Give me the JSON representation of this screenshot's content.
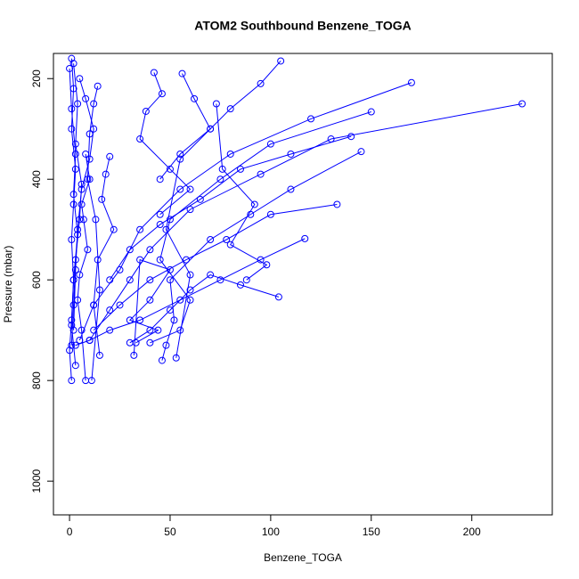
{
  "chart_data": {
    "type": "line",
    "title": "ATOM2 Southbound Benzene_TOGA",
    "x_label": "Benzene_TOGA",
    "y_label": "Pressure (mbar)",
    "color": "#0000ff",
    "xlim": [
      -8,
      240
    ],
    "xticks": [
      0,
      50,
      100,
      150,
      200
    ],
    "ylim": [
      1067,
      150
    ],
    "yticks": [
      200,
      400,
      600,
      800,
      1000
    ],
    "profiles": [
      {
        "x": [
          1,
          2,
          1,
          3,
          2,
          1,
          2,
          1,
          0,
          1
        ],
        "y": [
          160,
          220,
          300,
          380,
          450,
          520,
          600,
          680,
          740,
          800
        ]
      },
      {
        "x": [
          2,
          4,
          3,
          6,
          5,
          3,
          2,
          1
        ],
        "y": [
          170,
          250,
          330,
          410,
          480,
          560,
          650,
          730
        ]
      },
      {
        "x": [
          0,
          1,
          3,
          2,
          4,
          2,
          1,
          3
        ],
        "y": [
          180,
          260,
          350,
          430,
          510,
          600,
          690,
          770
        ]
      },
      {
        "x": [
          5,
          8,
          12,
          10,
          6,
          4,
          3,
          2
        ],
        "y": [
          200,
          240,
          300,
          360,
          420,
          500,
          580,
          700
        ]
      },
      {
        "x": [
          225,
          130,
          95,
          60,
          40,
          30,
          20,
          10
        ],
        "y": [
          250,
          320,
          390,
          460,
          540,
          600,
          660,
          720
        ]
      },
      {
        "x": [
          170,
          120,
          80,
          55,
          35,
          25,
          12,
          5
        ],
        "y": [
          208,
          280,
          350,
          420,
          500,
          580,
          650,
          720
        ]
      },
      {
        "x": [
          150,
          100,
          75,
          50,
          45,
          60,
          55,
          40
        ],
        "y": [
          266,
          330,
          400,
          480,
          560,
          640,
          700,
          725
        ]
      },
      {
        "x": [
          145,
          110,
          90,
          70,
          50,
          52,
          48,
          46
        ],
        "y": [
          345,
          420,
          470,
          520,
          600,
          680,
          730,
          760
        ]
      },
      {
        "x": [
          117,
          95,
          75,
          55,
          35,
          20,
          10,
          3
        ],
        "y": [
          518,
          560,
          600,
          640,
          680,
          700,
          720,
          730
        ]
      },
      {
        "x": [
          104,
          85,
          70,
          60,
          50,
          40,
          30
        ],
        "y": [
          634,
          610,
          590,
          620,
          660,
          700,
          725
        ]
      },
      {
        "x": [
          133,
          100,
          78,
          58,
          40,
          25,
          12
        ],
        "y": [
          450,
          470,
          520,
          560,
          600,
          650,
          700
        ]
      },
      {
        "x": [
          140,
          110,
          85,
          65,
          45,
          30,
          20
        ],
        "y": [
          315,
          350,
          380,
          440,
          490,
          540,
          600
        ]
      },
      {
        "x": [
          105,
          95,
          80,
          70,
          55,
          45
        ],
        "y": [
          165,
          210,
          260,
          300,
          350,
          400
        ]
      },
      {
        "x": [
          42,
          46,
          38,
          35,
          50,
          60,
          45
        ],
        "y": [
          188,
          230,
          265,
          320,
          380,
          420,
          470
        ]
      },
      {
        "x": [
          20,
          18,
          16,
          22,
          14,
          12,
          15
        ],
        "y": [
          355,
          390,
          440,
          500,
          560,
          650,
          750
        ]
      },
      {
        "x": [
          14,
          12,
          10,
          9,
          13,
          15,
          11
        ],
        "y": [
          215,
          250,
          310,
          400,
          480,
          620,
          800
        ]
      },
      {
        "x": [
          56,
          62,
          70,
          55,
          48,
          60,
          53
        ],
        "y": [
          190,
          240,
          300,
          360,
          500,
          590,
          755
        ]
      },
      {
        "x": [
          8,
          10,
          6,
          7,
          9,
          5,
          4,
          6,
          8
        ],
        "y": [
          350,
          400,
          450,
          480,
          540,
          590,
          640,
          700,
          800
        ]
      },
      {
        "x": [
          33,
          44,
          30,
          40,
          50,
          35,
          32
        ],
        "y": [
          725,
          700,
          680,
          640,
          580,
          560,
          750
        ]
      },
      {
        "x": [
          88,
          98,
          80,
          92,
          76,
          73
        ],
        "y": [
          600,
          570,
          530,
          450,
          380,
          250
        ]
      }
    ]
  }
}
